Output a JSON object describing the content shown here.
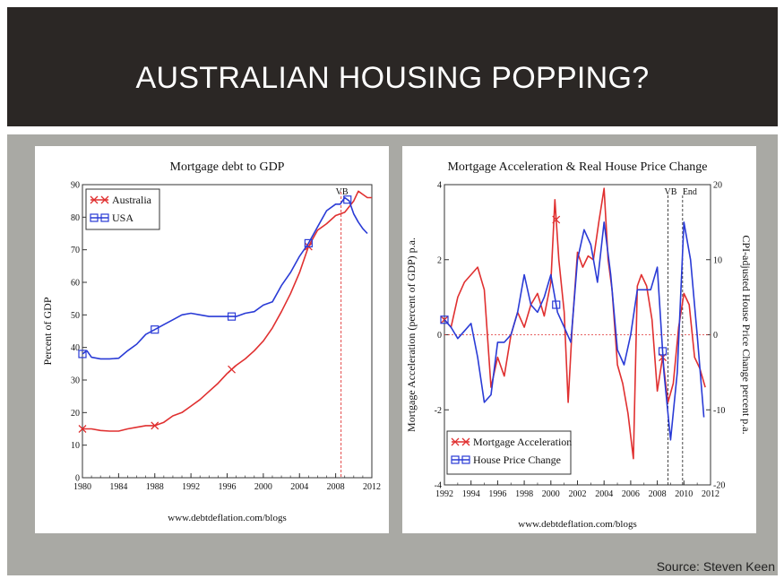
{
  "slide": {
    "title": "AUSTRALIAN HOUSING POPPING?",
    "source": "Source: Steven Keen"
  },
  "colors": {
    "australia": "#e03030",
    "usa": "#2a3bd6",
    "title_bar": "#2b2725",
    "background": "#a9a9a4"
  },
  "chart_data": [
    {
      "type": "line",
      "title": "Mortgage debt to GDP",
      "xlabel": "",
      "ylabel": "Percent of GDP",
      "footer": "www.debtdeflation.com/blogs",
      "xlim": [
        1980,
        2012
      ],
      "ylim": [
        0,
        90
      ],
      "xticks": [
        "1980",
        "1984",
        "1988",
        "1992",
        "1996",
        "2000",
        "2004",
        "2008",
        "2012"
      ],
      "yticks": [
        "0",
        "10",
        "20",
        "30",
        "40",
        "50",
        "60",
        "70",
        "80",
        "90"
      ],
      "legend": "top-left",
      "annotations": [
        {
          "text": "VB",
          "x": 2008.6
        }
      ],
      "series": [
        {
          "name": "Australia",
          "color": "#e03030",
          "marker": "x",
          "x": [
            1980,
            1981,
            1982,
            1983,
            1984,
            1985,
            1986,
            1987,
            1988,
            1989,
            1990,
            1991,
            1992,
            1993,
            1994,
            1995,
            1996,
            1997,
            1998,
            1999,
            2000,
            2001,
            2002,
            2003,
            2004,
            2005,
            2006,
            2007,
            2008,
            2009,
            2010,
            2010.5,
            2011,
            2011.5,
            2012
          ],
          "y": [
            15,
            15,
            14.5,
            14.3,
            14.3,
            15,
            15.5,
            16,
            16,
            17,
            19,
            20,
            22,
            24,
            26.5,
            29,
            32,
            34.5,
            36.5,
            39,
            42,
            46,
            51,
            56.5,
            63,
            71,
            76,
            78,
            80.5,
            81.5,
            85,
            88,
            87,
            86,
            86
          ],
          "markers_x": [
            1980,
            1988,
            1996.5,
            2005
          ]
        },
        {
          "name": "USA",
          "color": "#2a3bd6",
          "marker": "square",
          "x": [
            1980,
            1980.5,
            1981,
            1982,
            1983,
            1984,
            1985,
            1986,
            1987,
            1988,
            1989,
            1990,
            1991,
            1992,
            1993,
            1994,
            1995,
            1996,
            1997,
            1998,
            1999,
            2000,
            2001,
            2002,
            2003,
            2004,
            2005,
            2006,
            2007,
            2008,
            2008.5,
            2009,
            2009.5,
            2010,
            2010.5,
            2011,
            2011.5
          ],
          "y": [
            38,
            39,
            37,
            36.5,
            36.5,
            36.7,
            39,
            41,
            44,
            45.5,
            47,
            48.5,
            50,
            50.5,
            50,
            49.5,
            49.5,
            49.5,
            49.5,
            50.5,
            51,
            53,
            54,
            59,
            63,
            68,
            72,
            77,
            82,
            84,
            84,
            86,
            85,
            81,
            78.5,
            76.5,
            75
          ],
          "markers_x": [
            1980,
            1988,
            1996.5,
            2005,
            2009.3
          ]
        }
      ]
    },
    {
      "type": "line",
      "title": "Mortgage Acceleration & Real House Price Change",
      "xlabel": "",
      "ylabel": "Mortgage Acceleration (percent of GDP) p.a.",
      "y2label": "CPI-adjusted House Price Change percent p.a.",
      "footer": "www.debtdeflation.com/blogs",
      "xlim": [
        1992,
        2012
      ],
      "ylim": [
        -4,
        4
      ],
      "y2lim": [
        -20,
        20
      ],
      "xticks": [
        "1992",
        "1994",
        "1996",
        "1998",
        "2000",
        "2002",
        "2004",
        "2006",
        "2008",
        "2010",
        "2012"
      ],
      "yticks": [
        "-4",
        "-2",
        "0",
        "2",
        "4"
      ],
      "y2ticks": [
        "-20",
        "-10",
        "0",
        "10",
        "20"
      ],
      "legend": "bottom-left",
      "annotations": [
        {
          "text": "VB",
          "x": 2008.8
        },
        {
          "text": "End",
          "x": 2009.9
        }
      ],
      "series": [
        {
          "name": "Mortgage Acceleration",
          "color": "#e03030",
          "marker": "x",
          "axis": "left",
          "x": [
            1992,
            1992.5,
            1993,
            1993.5,
            1994,
            1994.5,
            1995,
            1995.5,
            1996,
            1996.5,
            1997,
            1997.5,
            1998,
            1998.5,
            1999,
            1999.5,
            2000,
            2000.3,
            2000.6,
            2001,
            2001.3,
            2001.6,
            2002,
            2002.4,
            2002.8,
            2003.2,
            2003.6,
            2004,
            2004.3,
            2004.6,
            2005,
            2005.4,
            2005.8,
            2006.2,
            2006.5,
            2006.8,
            2007.2,
            2007.6,
            2008,
            2008.4,
            2008.8,
            2009.2,
            2009.6,
            2010,
            2010.4,
            2010.8,
            2011.2,
            2011.6
          ],
          "y": [
            0.4,
            0.2,
            1.0,
            1.4,
            1.6,
            1.8,
            1.2,
            -1.4,
            -0.6,
            -1.1,
            0,
            0.6,
            0.2,
            0.8,
            1.1,
            0.5,
            1.4,
            3.6,
            2.0,
            0.6,
            -1.8,
            0.2,
            2.2,
            1.8,
            2.1,
            2.0,
            3.0,
            3.9,
            2.0,
            1.2,
            -0.8,
            -1.3,
            -2.1,
            -3.3,
            1.3,
            1.6,
            1.3,
            0.4,
            -1.5,
            -0.6,
            -1.8,
            -1.3,
            0.2,
            1.1,
            0.8,
            -0.6,
            -0.9,
            -1.4
          ],
          "markers_x": [
            1992,
            2000.4,
            2008.4
          ]
        },
        {
          "name": "House Price Change",
          "color": "#2a3bd6",
          "marker": "square",
          "axis": "right",
          "x": [
            1992,
            1992.5,
            1993,
            1993.5,
            1994,
            1994.5,
            1995,
            1995.5,
            1996,
            1996.5,
            1997,
            1997.5,
            1998,
            1998.5,
            1999,
            1999.5,
            2000,
            2000.5,
            2001,
            2001.5,
            2002,
            2002.5,
            2003,
            2003.5,
            2004,
            2004.5,
            2005,
            2005.5,
            2006,
            2006.5,
            2007,
            2007.5,
            2008,
            2008.5,
            2009,
            2009.5,
            2010,
            2010.5,
            2011,
            2011.5
          ],
          "y": [
            2,
            1,
            -0.5,
            0.5,
            1.5,
            -3,
            -9,
            -8,
            -1,
            -1,
            0,
            3,
            8,
            4,
            3,
            5,
            8,
            3,
            1,
            -1,
            10,
            14,
            12,
            7,
            15,
            8,
            -2,
            -4,
            0,
            6,
            6,
            6,
            9,
            -5,
            -14,
            -5,
            15,
            10,
            0,
            -11
          ],
          "markers_x": [
            1992,
            2000.4,
            2008.4
          ]
        }
      ]
    }
  ]
}
